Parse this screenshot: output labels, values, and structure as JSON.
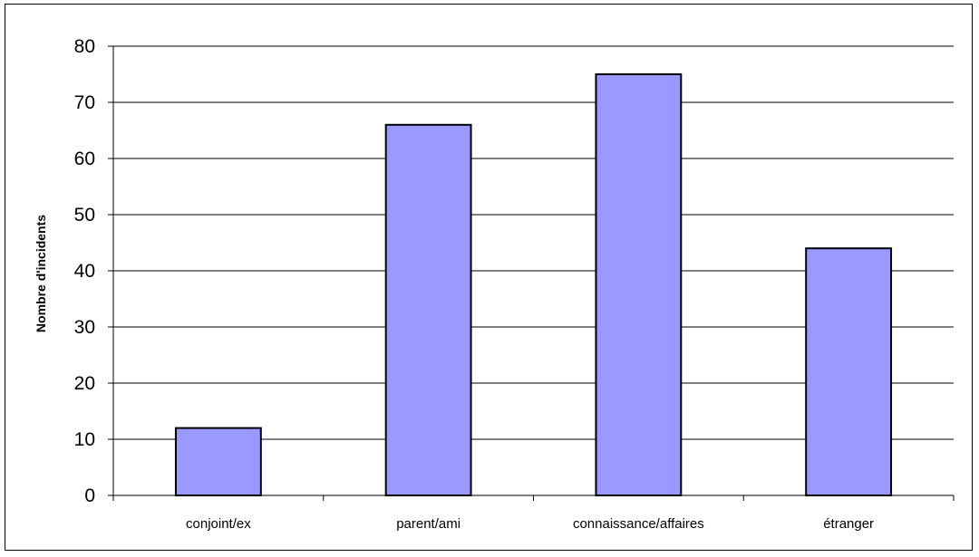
{
  "chart_data": {
    "type": "bar",
    "title": "",
    "xlabel": "",
    "ylabel": "Nombre d'incidents",
    "categories": [
      "conjoint/ex",
      "parent/ami",
      "connaissance/affaires",
      "étranger"
    ],
    "values": [
      12,
      66,
      75,
      44
    ],
    "ylim": [
      0,
      80
    ],
    "yticks": [
      0,
      10,
      20,
      30,
      40,
      50,
      60,
      70,
      80
    ],
    "grid": true,
    "legend": "none",
    "bar_color": "#9999ff",
    "bar_edge_color": "#000000"
  }
}
